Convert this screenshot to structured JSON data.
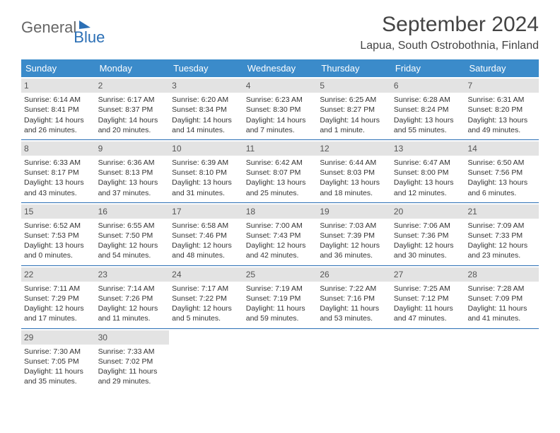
{
  "logo": {
    "part1": "General",
    "part2": "Blue"
  },
  "title": "September 2024",
  "location": "Lapua, South Ostrobothnia, Finland",
  "colors": {
    "header_bg": "#3b8bca",
    "week_border": "#2b6fb5",
    "daynum_bg": "#e3e3e3"
  },
  "weekdays": [
    "Sunday",
    "Monday",
    "Tuesday",
    "Wednesday",
    "Thursday",
    "Friday",
    "Saturday"
  ],
  "startOffset": 0,
  "days": [
    {
      "n": 1,
      "sunrise": "6:14 AM",
      "sunset": "8:41 PM",
      "daylight": "14 hours and 26 minutes."
    },
    {
      "n": 2,
      "sunrise": "6:17 AM",
      "sunset": "8:37 PM",
      "daylight": "14 hours and 20 minutes."
    },
    {
      "n": 3,
      "sunrise": "6:20 AM",
      "sunset": "8:34 PM",
      "daylight": "14 hours and 14 minutes."
    },
    {
      "n": 4,
      "sunrise": "6:23 AM",
      "sunset": "8:30 PM",
      "daylight": "14 hours and 7 minutes."
    },
    {
      "n": 5,
      "sunrise": "6:25 AM",
      "sunset": "8:27 PM",
      "daylight": "14 hours and 1 minute."
    },
    {
      "n": 6,
      "sunrise": "6:28 AM",
      "sunset": "8:24 PM",
      "daylight": "13 hours and 55 minutes."
    },
    {
      "n": 7,
      "sunrise": "6:31 AM",
      "sunset": "8:20 PM",
      "daylight": "13 hours and 49 minutes."
    },
    {
      "n": 8,
      "sunrise": "6:33 AM",
      "sunset": "8:17 PM",
      "daylight": "13 hours and 43 minutes."
    },
    {
      "n": 9,
      "sunrise": "6:36 AM",
      "sunset": "8:13 PM",
      "daylight": "13 hours and 37 minutes."
    },
    {
      "n": 10,
      "sunrise": "6:39 AM",
      "sunset": "8:10 PM",
      "daylight": "13 hours and 31 minutes."
    },
    {
      "n": 11,
      "sunrise": "6:42 AM",
      "sunset": "8:07 PM",
      "daylight": "13 hours and 25 minutes."
    },
    {
      "n": 12,
      "sunrise": "6:44 AM",
      "sunset": "8:03 PM",
      "daylight": "13 hours and 18 minutes."
    },
    {
      "n": 13,
      "sunrise": "6:47 AM",
      "sunset": "8:00 PM",
      "daylight": "13 hours and 12 minutes."
    },
    {
      "n": 14,
      "sunrise": "6:50 AM",
      "sunset": "7:56 PM",
      "daylight": "13 hours and 6 minutes."
    },
    {
      "n": 15,
      "sunrise": "6:52 AM",
      "sunset": "7:53 PM",
      "daylight": "13 hours and 0 minutes."
    },
    {
      "n": 16,
      "sunrise": "6:55 AM",
      "sunset": "7:50 PM",
      "daylight": "12 hours and 54 minutes."
    },
    {
      "n": 17,
      "sunrise": "6:58 AM",
      "sunset": "7:46 PM",
      "daylight": "12 hours and 48 minutes."
    },
    {
      "n": 18,
      "sunrise": "7:00 AM",
      "sunset": "7:43 PM",
      "daylight": "12 hours and 42 minutes."
    },
    {
      "n": 19,
      "sunrise": "7:03 AM",
      "sunset": "7:39 PM",
      "daylight": "12 hours and 36 minutes."
    },
    {
      "n": 20,
      "sunrise": "7:06 AM",
      "sunset": "7:36 PM",
      "daylight": "12 hours and 30 minutes."
    },
    {
      "n": 21,
      "sunrise": "7:09 AM",
      "sunset": "7:33 PM",
      "daylight": "12 hours and 23 minutes."
    },
    {
      "n": 22,
      "sunrise": "7:11 AM",
      "sunset": "7:29 PM",
      "daylight": "12 hours and 17 minutes."
    },
    {
      "n": 23,
      "sunrise": "7:14 AM",
      "sunset": "7:26 PM",
      "daylight": "12 hours and 11 minutes."
    },
    {
      "n": 24,
      "sunrise": "7:17 AM",
      "sunset": "7:22 PM",
      "daylight": "12 hours and 5 minutes."
    },
    {
      "n": 25,
      "sunrise": "7:19 AM",
      "sunset": "7:19 PM",
      "daylight": "11 hours and 59 minutes."
    },
    {
      "n": 26,
      "sunrise": "7:22 AM",
      "sunset": "7:16 PM",
      "daylight": "11 hours and 53 minutes."
    },
    {
      "n": 27,
      "sunrise": "7:25 AM",
      "sunset": "7:12 PM",
      "daylight": "11 hours and 47 minutes."
    },
    {
      "n": 28,
      "sunrise": "7:28 AM",
      "sunset": "7:09 PM",
      "daylight": "11 hours and 41 minutes."
    },
    {
      "n": 29,
      "sunrise": "7:30 AM",
      "sunset": "7:05 PM",
      "daylight": "11 hours and 35 minutes."
    },
    {
      "n": 30,
      "sunrise": "7:33 AM",
      "sunset": "7:02 PM",
      "daylight": "11 hours and 29 minutes."
    }
  ],
  "labels": {
    "sunrise": "Sunrise:",
    "sunset": "Sunset:",
    "daylight": "Daylight:"
  }
}
